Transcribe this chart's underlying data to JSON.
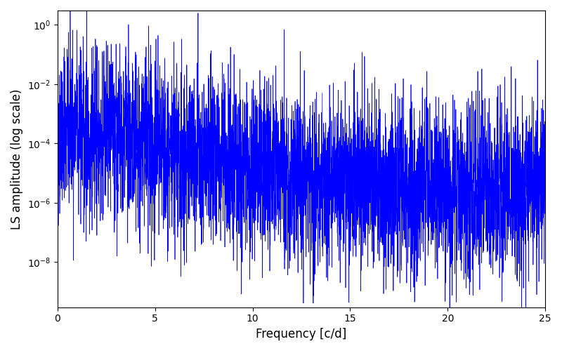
{
  "xlabel": "Frequency [c/d]",
  "ylabel": "LS amplitude (log scale)",
  "xlim": [
    0,
    25
  ],
  "ylim_bottom": 3e-10,
  "ylim_top": 3.0,
  "line_color": "#0000ff",
  "line_width": 0.5,
  "background_color": "#ffffff",
  "seed": 42,
  "n_freq": 8000,
  "freq_max": 25.0
}
